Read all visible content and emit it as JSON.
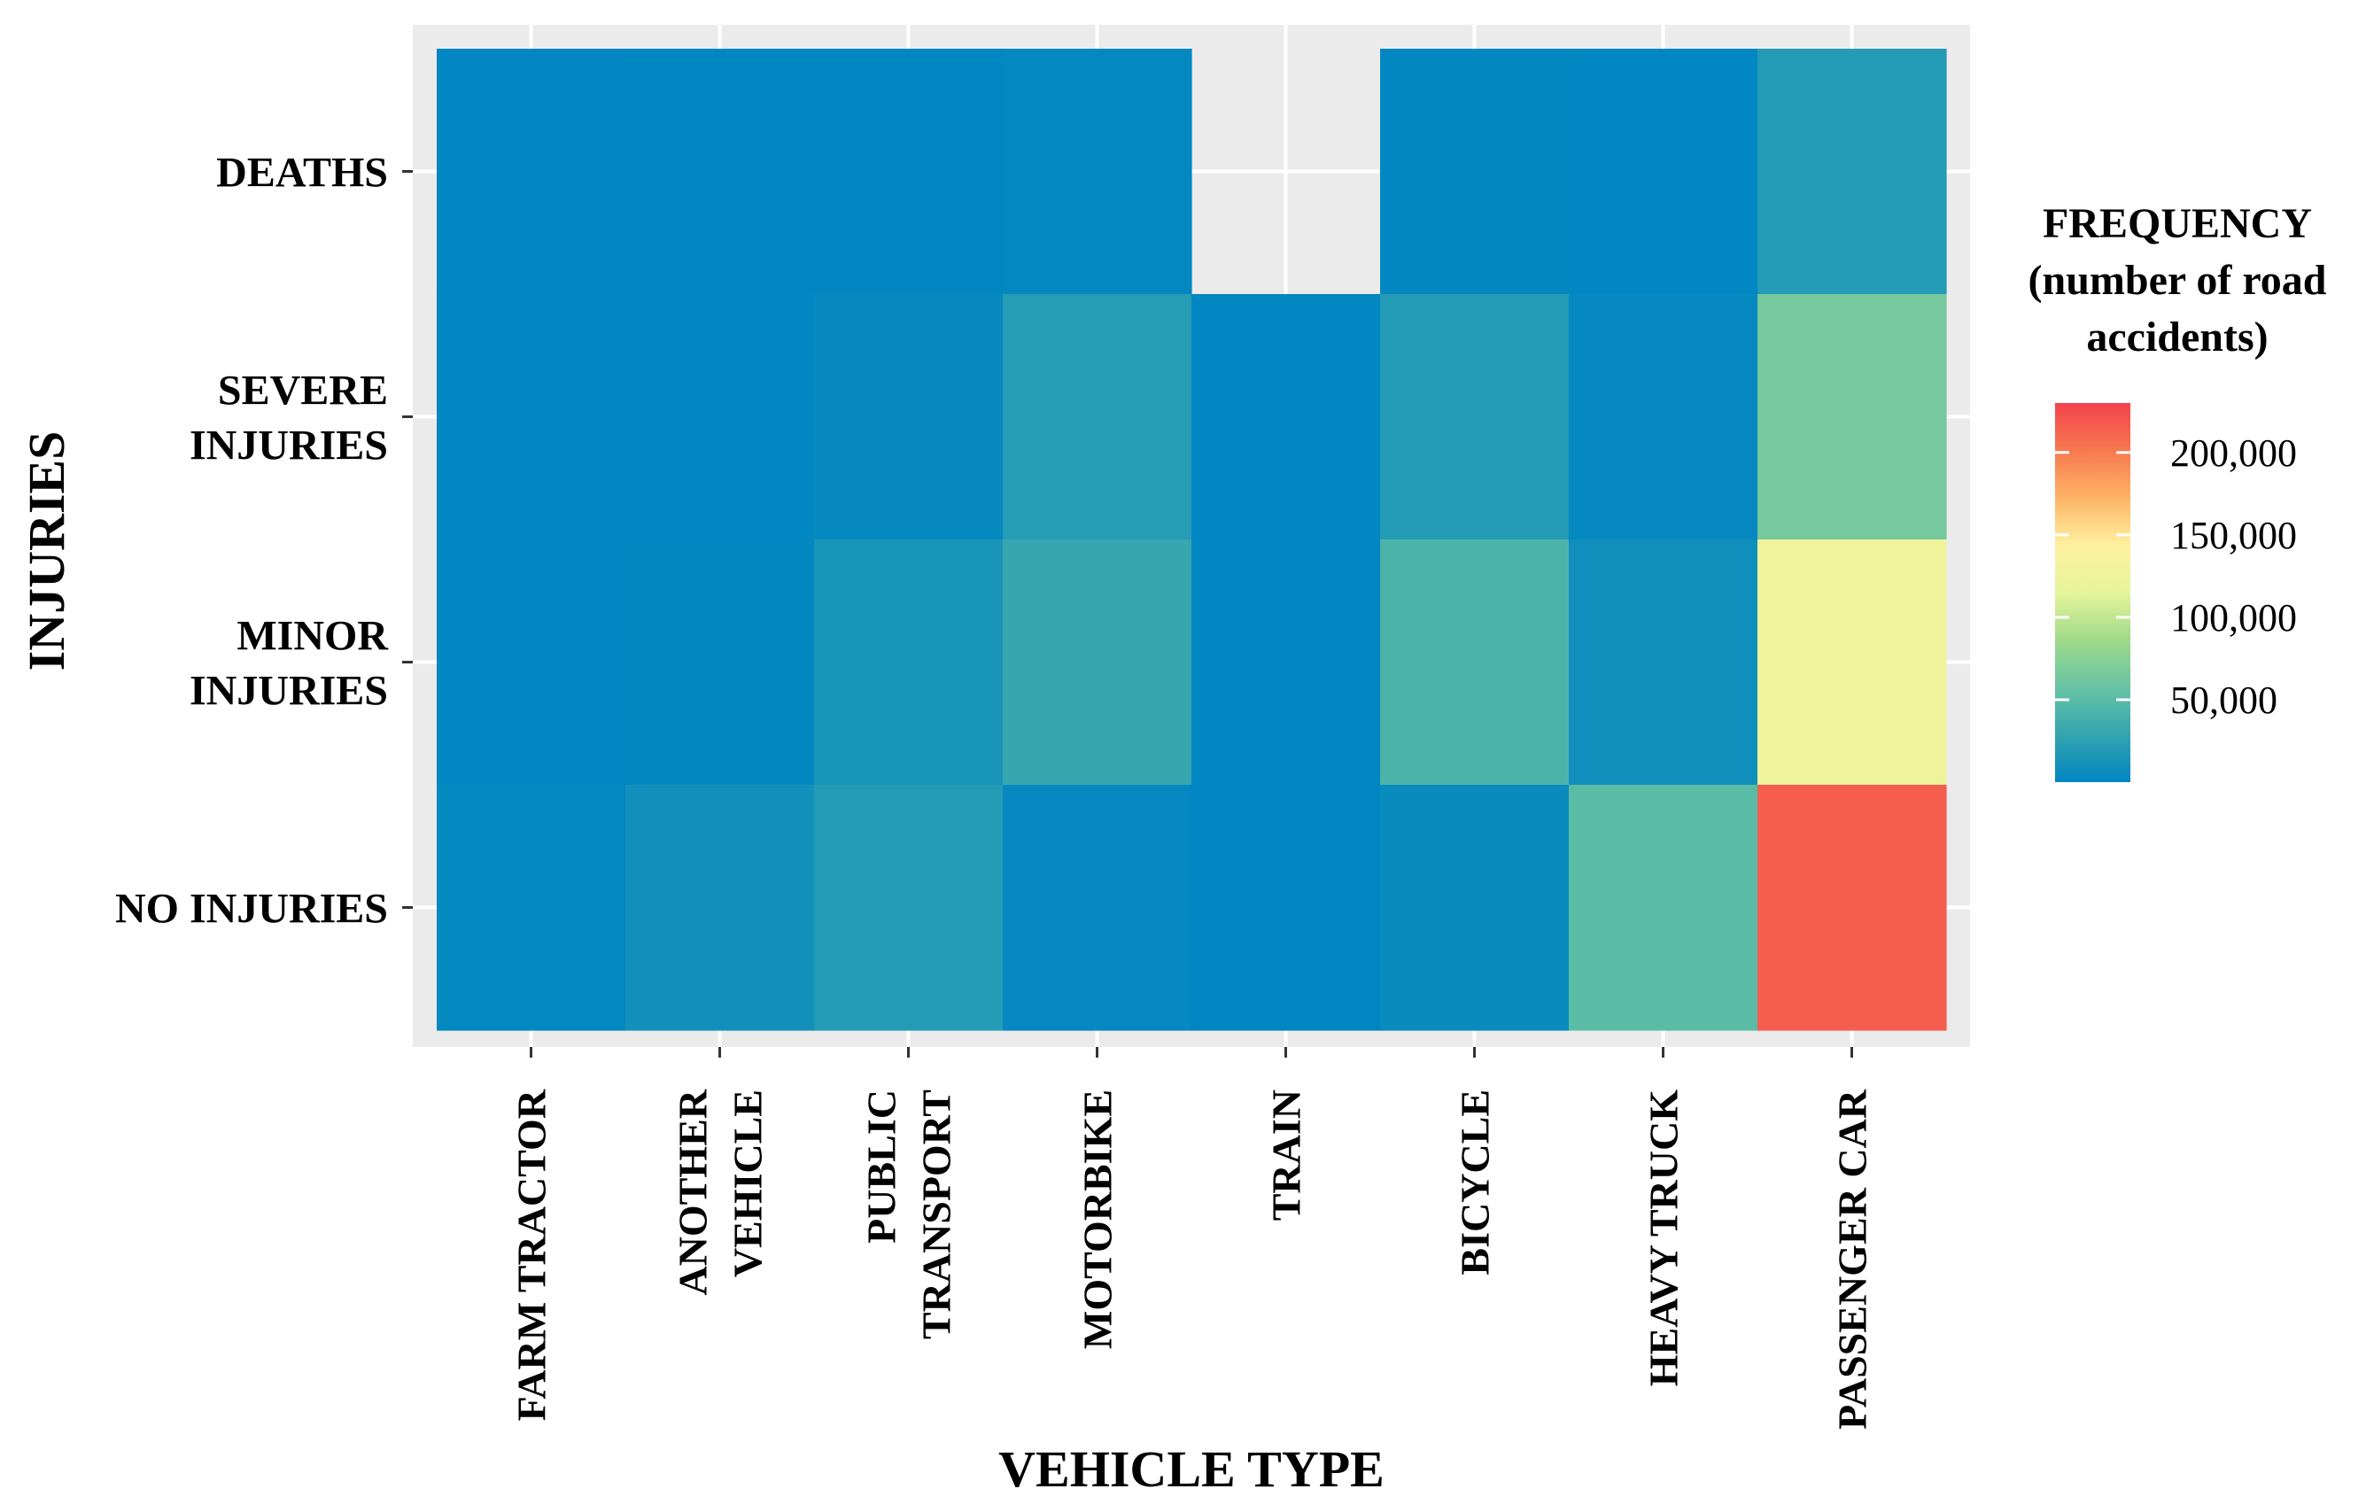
{
  "chart_data": {
    "type": "heatmap",
    "title": "",
    "xlabel": "VEHICLE TYPE",
    "ylabel": "INJURIES",
    "x_categories": [
      [
        "FARM TRACTOR"
      ],
      [
        "ANOTHER",
        "VEHICLE"
      ],
      [
        "PUBLIC",
        "TRANSPORT"
      ],
      [
        "MOTORBIKE"
      ],
      [
        "TRAIN"
      ],
      [
        "BICYCLE"
      ],
      [
        "HEAVY TRUCK"
      ],
      [
        "PASSENGER CAR"
      ]
    ],
    "y_categories": [
      [
        "DEATHS"
      ],
      [
        "SEVERE",
        "INJURIES"
      ],
      [
        "MINOR",
        "INJURIES"
      ],
      [
        "NO INJURIES"
      ]
    ],
    "values": [
      [
        200,
        300,
        300,
        1500,
        null,
        1200,
        600,
        20000
      ],
      [
        500,
        800,
        3000,
        21000,
        100,
        20000,
        2500,
        65000
      ],
      [
        800,
        1000,
        14000,
        31000,
        200,
        43000,
        9000,
        125000
      ],
      [
        1500,
        10000,
        20000,
        2500,
        300,
        5000,
        51000,
        215000
      ]
    ],
    "legend": {
      "title_lines": [
        "FREQUENCY",
        "(number of road",
        "accidents)"
      ],
      "ticks": [
        50000,
        100000,
        150000,
        200000
      ],
      "tick_labels": [
        "50,000",
        "100,000",
        "150,000",
        "200,000"
      ],
      "min": 0,
      "max": 230000,
      "placement": "right"
    },
    "colors": {
      "panel_background": "#ebebeb",
      "gridline": "#ffffff",
      "scale": [
        "#0086c1",
        "#34a4b0",
        "#67c3a3",
        "#9fd98a",
        "#e6f59a",
        "#fff0a0",
        "#fdb366",
        "#f7784f",
        "#f2424c"
      ]
    },
    "grid": true
  }
}
